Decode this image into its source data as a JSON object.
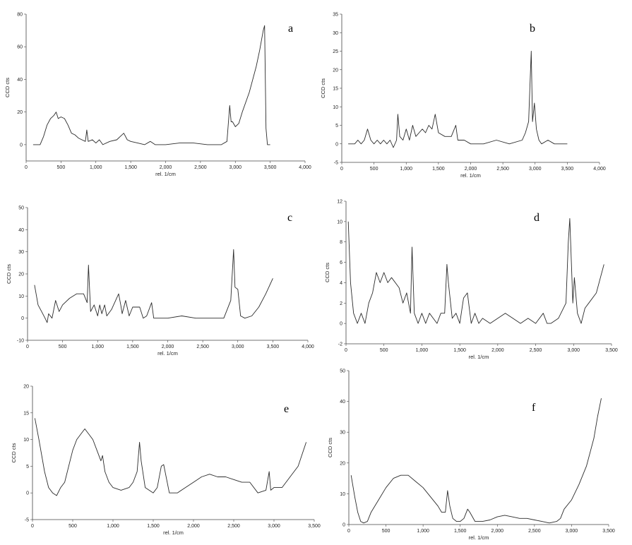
{
  "chart_data": [
    {
      "type": "line",
      "panel_label": "a",
      "xlabel": "rel. 1/cm",
      "ylabel": "CCD cts",
      "xlim": [
        0,
        4000
      ],
      "ylim": [
        -10,
        80
      ],
      "xticks": [
        0,
        500,
        1000,
        1500,
        2000,
        2500,
        3000,
        3500,
        4000
      ],
      "xtick_labels": [
        "0",
        "500",
        "1,000",
        "1,500",
        "2,000",
        "2,500",
        "3,000",
        "3,500",
        "4,000"
      ],
      "yticks": [
        0,
        20,
        40,
        60,
        80
      ],
      "ytick_labels": [
        "0",
        "20",
        "40",
        "60",
        "80"
      ],
      "grid": false,
      "x": [
        100,
        200,
        250,
        300,
        350,
        400,
        430,
        460,
        500,
        550,
        600,
        650,
        700,
        750,
        800,
        850,
        870,
        890,
        950,
        1000,
        1050,
        1100,
        1200,
        1300,
        1350,
        1400,
        1450,
        1500,
        1600,
        1700,
        1780,
        1850,
        2000,
        2200,
        2400,
        2600,
        2800,
        2880,
        2920,
        2940,
        2960,
        3000,
        3050,
        3100,
        3200,
        3300,
        3350,
        3400,
        3420,
        3440,
        3460,
        3480,
        3500
      ],
      "y": [
        0,
        0,
        5,
        12,
        16,
        18,
        20,
        16,
        17,
        16,
        12,
        7,
        6,
        4,
        3,
        2,
        9,
        2,
        3,
        1,
        3,
        0,
        2,
        3,
        5,
        7,
        3,
        2,
        1,
        0,
        2,
        0,
        0,
        1,
        1,
        0,
        0,
        2,
        24,
        14,
        14,
        11,
        13,
        20,
        32,
        48,
        58,
        70,
        73,
        10,
        0,
        0,
        0
      ]
    },
    {
      "type": "line",
      "panel_label": "b",
      "xlabel": "rel. 1/cm",
      "ylabel": "CCD cts",
      "xlim": [
        0,
        4000
      ],
      "ylim": [
        -5,
        35
      ],
      "xticks": [
        0,
        500,
        1000,
        1500,
        2000,
        2500,
        3000,
        3500,
        4000
      ],
      "xtick_labels": [
        "0",
        "500",
        "1,000",
        "1,500",
        "2,000",
        "2,500",
        "3,000",
        "3,500",
        "4,000"
      ],
      "yticks": [
        -5,
        0,
        5,
        10,
        15,
        20,
        25,
        30,
        35
      ],
      "ytick_labels": [
        "-5",
        "0",
        "5",
        "10",
        "15",
        "20",
        "25",
        "30",
        "35"
      ],
      "grid": false,
      "x": [
        100,
        200,
        250,
        300,
        350,
        400,
        450,
        500,
        550,
        600,
        650,
        700,
        750,
        800,
        850,
        870,
        900,
        950,
        1000,
        1050,
        1100,
        1150,
        1200,
        1250,
        1300,
        1350,
        1400,
        1450,
        1500,
        1600,
        1700,
        1770,
        1800,
        1900,
        2000,
        2200,
        2400,
        2600,
        2800,
        2850,
        2900,
        2940,
        2960,
        2990,
        3020,
        3060,
        3100,
        3200,
        3300,
        3400,
        3500
      ],
      "y": [
        0,
        0,
        1,
        0,
        1,
        4,
        1,
        0,
        1,
        0,
        1,
        0,
        1,
        -1,
        1,
        8,
        2,
        1,
        4,
        1,
        5,
        2,
        3,
        4,
        3,
        5,
        4,
        8,
        3,
        2,
        2,
        5,
        1,
        1,
        0,
        0,
        1,
        0,
        1,
        3,
        6,
        25,
        6,
        11,
        4,
        1,
        0,
        1,
        0,
        0,
        0
      ]
    },
    {
      "type": "line",
      "panel_label": "c",
      "xlabel": "rel. 1/cm",
      "ylabel": "CCD cts",
      "xlim": [
        0,
        4000
      ],
      "ylim": [
        -10,
        50
      ],
      "xticks": [
        0,
        500,
        1000,
        1500,
        2000,
        2500,
        3000,
        3500,
        4000
      ],
      "xtick_labels": [
        "0",
        "500",
        "1,000",
        "1,500",
        "2,000",
        "2,500",
        "3,000",
        "3,500",
        "4,000"
      ],
      "yticks": [
        -10,
        0,
        10,
        20,
        30,
        40,
        50
      ],
      "ytick_labels": [
        "-10",
        "0",
        "10",
        "20",
        "30",
        "40",
        "50"
      ],
      "grid": false,
      "x": [
        100,
        150,
        200,
        250,
        280,
        300,
        350,
        400,
        450,
        500,
        600,
        700,
        800,
        850,
        870,
        900,
        950,
        1000,
        1030,
        1060,
        1100,
        1130,
        1200,
        1300,
        1330,
        1350,
        1400,
        1450,
        1500,
        1600,
        1650,
        1700,
        1770,
        1800,
        1900,
        2000,
        2200,
        2400,
        2600,
        2800,
        2850,
        2900,
        2940,
        2960,
        3000,
        3040,
        3100,
        3200,
        3300,
        3400,
        3500
      ],
      "y": [
        15,
        6,
        3,
        0,
        -2,
        2,
        0,
        8,
        3,
        6,
        9,
        11,
        11,
        7,
        24,
        3,
        6,
        1,
        6,
        2,
        6,
        1,
        4,
        11,
        6,
        2,
        8,
        1,
        5,
        5,
        0,
        1,
        7,
        0,
        0,
        0,
        1,
        0,
        0,
        0,
        4,
        8,
        31,
        14,
        13,
        1,
        0,
        1,
        5,
        11,
        18
      ]
    },
    {
      "type": "line",
      "panel_label": "d",
      "xlabel": "rel. 1/cm",
      "ylabel": "CCD cts",
      "xlim": [
        0,
        3500
      ],
      "ylim": [
        -2,
        12
      ],
      "xticks": [
        0,
        500,
        1000,
        1500,
        2000,
        2500,
        3000,
        3500
      ],
      "xtick_labels": [
        "0",
        "500",
        "1,000",
        "1,500",
        "2,000",
        "2,500",
        "3,000",
        "3,500"
      ],
      "yticks": [
        -2,
        0,
        2,
        4,
        6,
        8,
        10,
        12
      ],
      "ytick_labels": [
        "-2",
        "0",
        "2",
        "4",
        "6",
        "8",
        "10",
        "12"
      ],
      "grid": false,
      "x": [
        30,
        60,
        100,
        150,
        200,
        250,
        300,
        350,
        400,
        450,
        500,
        550,
        600,
        700,
        750,
        800,
        850,
        870,
        900,
        950,
        1000,
        1050,
        1100,
        1150,
        1200,
        1250,
        1300,
        1330,
        1350,
        1400,
        1450,
        1500,
        1550,
        1600,
        1650,
        1700,
        1750,
        1800,
        1900,
        2000,
        2100,
        2200,
        2300,
        2400,
        2500,
        2600,
        2650,
        2700,
        2800,
        2900,
        2930,
        2950,
        2990,
        3010,
        3050,
        3100,
        3150,
        3200,
        3300,
        3400
      ],
      "y": [
        10,
        4,
        1,
        0,
        1,
        0,
        2,
        3,
        5,
        4,
        5,
        4,
        4.5,
        3.5,
        2,
        3,
        1,
        7.5,
        1,
        0,
        1,
        0,
        1,
        0.5,
        0,
        1,
        1,
        5.8,
        4,
        0.5,
        1,
        0,
        2.5,
        3,
        0,
        1,
        0,
        0.5,
        0,
        0.5,
        1,
        0.5,
        0,
        0.5,
        0,
        1,
        0,
        0,
        0.5,
        2,
        8,
        10.3,
        2,
        4.5,
        1,
        0,
        1.5,
        2,
        3,
        5.8
      ]
    },
    {
      "type": "line",
      "panel_label": "e",
      "xlabel": "rel. 1/cm",
      "ylabel": "CCD cts",
      "xlim": [
        0,
        3500
      ],
      "ylim": [
        -5,
        20
      ],
      "xticks": [
        0,
        500,
        1000,
        1500,
        2000,
        2500,
        3000,
        3500
      ],
      "xtick_labels": [
        "0",
        "500",
        "1,000",
        "1,500",
        "2,000",
        "2,500",
        "3,000",
        "3,500"
      ],
      "yticks": [
        -5,
        0,
        5,
        10,
        15,
        20
      ],
      "ytick_labels": [
        "-5",
        "0",
        "5",
        "10",
        "15",
        "20"
      ],
      "grid": false,
      "x": [
        30,
        80,
        150,
        200,
        250,
        300,
        350,
        400,
        450,
        500,
        550,
        600,
        650,
        700,
        750,
        800,
        850,
        870,
        900,
        950,
        1000,
        1100,
        1200,
        1250,
        1300,
        1330,
        1350,
        1400,
        1500,
        1550,
        1600,
        1630,
        1700,
        1800,
        1900,
        2000,
        2100,
        2200,
        2300,
        2400,
        2500,
        2600,
        2700,
        2800,
        2900,
        2940,
        2960,
        3000,
        3100,
        3200,
        3300,
        3400
      ],
      "y": [
        14,
        10,
        4,
        1,
        0,
        -0.5,
        1,
        2,
        5,
        8,
        10,
        11,
        12,
        11,
        10,
        8,
        6,
        7,
        4,
        2,
        1,
        0.5,
        1,
        2,
        4,
        9.5,
        6,
        1,
        0,
        1,
        5,
        5.3,
        0,
        0,
        1,
        2,
        3,
        3.5,
        3,
        3,
        2.5,
        2,
        2,
        0,
        0.5,
        4,
        0.5,
        1,
        1,
        3,
        5,
        9.5
      ]
    },
    {
      "type": "line",
      "panel_label": "f",
      "xlabel": "rel. 1/cm",
      "ylabel": "CCD cts",
      "xlim": [
        0,
        3500
      ],
      "ylim": [
        0,
        50
      ],
      "xticks": [
        0,
        500,
        1000,
        1500,
        2000,
        2500,
        3000,
        3500
      ],
      "xtick_labels": [
        "0",
        "500",
        "1,000",
        "1,500",
        "2,000",
        "2,500",
        "3,000",
        "3,500"
      ],
      "yticks": [
        0,
        10,
        20,
        30,
        40,
        50
      ],
      "ytick_labels": [
        "0",
        "10",
        "20",
        "30",
        "40",
        "50"
      ],
      "grid": false,
      "x": [
        30,
        80,
        120,
        160,
        200,
        250,
        300,
        400,
        500,
        600,
        700,
        800,
        900,
        1000,
        1100,
        1200,
        1250,
        1300,
        1330,
        1360,
        1400,
        1450,
        1500,
        1550,
        1600,
        1630,
        1700,
        1800,
        1900,
        2000,
        2100,
        2200,
        2300,
        2400,
        2500,
        2600,
        2700,
        2800,
        2850,
        2900,
        3000,
        3100,
        3200,
        3300,
        3350,
        3400
      ],
      "y": [
        16,
        9,
        4,
        1,
        0.5,
        1,
        4,
        8,
        12,
        15,
        16,
        16,
        14,
        12,
        9,
        6,
        4,
        4,
        11,
        6,
        2,
        1,
        1,
        2,
        5,
        4,
        1,
        1,
        1.5,
        2.5,
        3,
        2.5,
        2,
        2,
        1.5,
        1,
        0.5,
        1,
        2,
        5,
        8,
        13,
        19,
        28,
        35,
        41
      ]
    }
  ]
}
